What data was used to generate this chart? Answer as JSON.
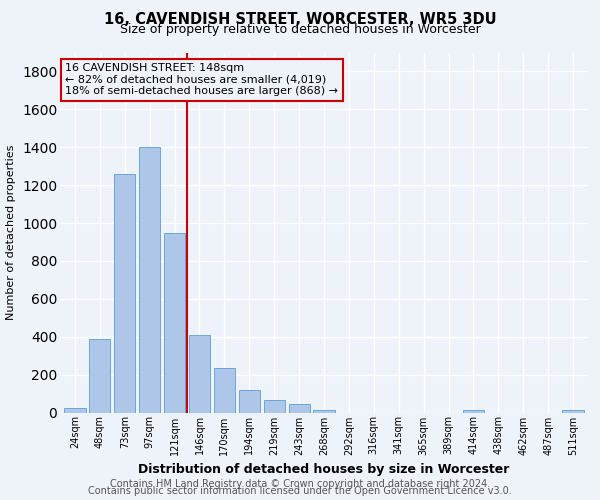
{
  "title1": "16, CAVENDISH STREET, WORCESTER, WR5 3DU",
  "title2": "Size of property relative to detached houses in Worcester",
  "xlabel": "Distribution of detached houses by size in Worcester",
  "ylabel": "Number of detached properties",
  "bar_labels": [
    "24sqm",
    "48sqm",
    "73sqm",
    "97sqm",
    "121sqm",
    "146sqm",
    "170sqm",
    "194sqm",
    "219sqm",
    "243sqm",
    "268sqm",
    "292sqm",
    "316sqm",
    "341sqm",
    "365sqm",
    "389sqm",
    "414sqm",
    "438sqm",
    "462sqm",
    "487sqm",
    "511sqm"
  ],
  "bar_values": [
    25,
    390,
    1260,
    1400,
    950,
    410,
    235,
    120,
    65,
    45,
    15,
    0,
    0,
    0,
    0,
    0,
    15,
    0,
    0,
    0,
    15
  ],
  "bar_color": "#aec6e8",
  "bar_edge_color": "#5a9fd4",
  "annotation_text": "16 CAVENDISH STREET: 148sqm\n← 82% of detached houses are smaller (4,019)\n18% of semi-detached houses are larger (868) →",
  "vline_color": "#cc0000",
  "vline_x": 4.5,
  "ylim": [
    0,
    1900
  ],
  "yticks": [
    0,
    200,
    400,
    600,
    800,
    1000,
    1200,
    1400,
    1600,
    1800
  ],
  "footer1": "Contains HM Land Registry data © Crown copyright and database right 2024.",
  "footer2": "Contains public sector information licensed under the Open Government Licence v3.0.",
  "bg_color": "#eef2f9",
  "grid_color": "#ffffff",
  "title1_fontsize": 10.5,
  "title2_fontsize": 9,
  "annotation_fontsize": 8,
  "ylabel_fontsize": 8,
  "xlabel_fontsize": 9,
  "footer_fontsize": 7,
  "tick_fontsize": 7
}
